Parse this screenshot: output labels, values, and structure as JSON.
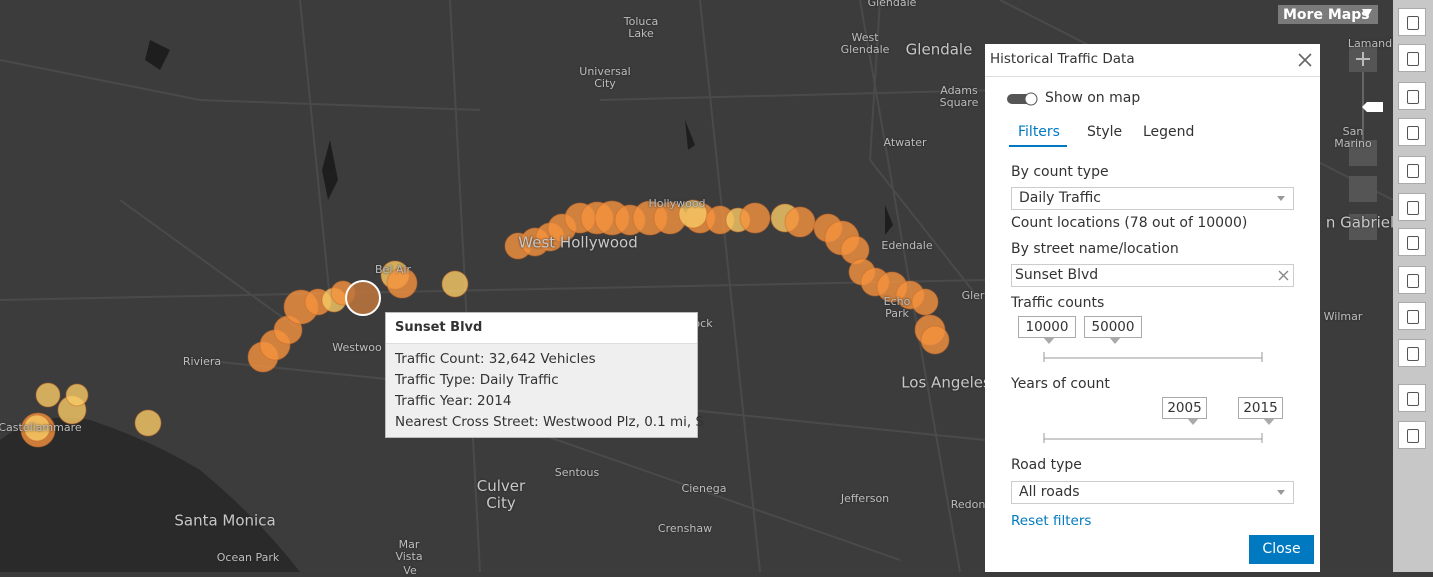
{
  "map": {
    "more_maps": "More Maps",
    "labels": [
      "Glendale",
      "Toluca Lake",
      "Universal City",
      "West Glendale",
      "Glendale",
      "Adams Square",
      "Atwater",
      "Hollywood",
      "West Hollywood",
      "Bel Air",
      "Edendale",
      "Echo Park",
      "Gler",
      "Westwoo",
      "ock",
      "Riviera",
      "Castellammare",
      "Los Angeles",
      "Culver City",
      "Sentous",
      "Cienega",
      "Crenshaw",
      "Jefferson",
      "Redon",
      "Santa Monica",
      "Ocean Park",
      "Mar Vista",
      "Ve",
      "Wilmar",
      "San Marino",
      "n Gabriel",
      "Lamand"
    ]
  },
  "popup": {
    "title": "Sunset Blvd",
    "fields": [
      {
        "label": "Traffic Count:",
        "value": "32,642 Vehicles"
      },
      {
        "label": "Traffic Type:",
        "value": "Daily Traffic"
      },
      {
        "label": "Traffic Year:",
        "value": "2014"
      },
      {
        "label": "Nearest Cross Street:",
        "value": "Westwood Plz, 0.1 mi, S"
      }
    ]
  },
  "panel": {
    "title": "Historical Traffic Data",
    "toggle": "Show on map",
    "tabs": [
      "Filters",
      "Style",
      "Legend"
    ],
    "count_type": {
      "label": "By count type",
      "selected": "Daily Traffic"
    },
    "count_locations": "Count locations (78 out of 10000)",
    "street": {
      "label": "By street name/location",
      "value": "Sunset Blvd"
    },
    "traffic_counts": {
      "label": "Traffic counts",
      "min": 10000,
      "max": 50000
    },
    "years": {
      "label": "Years of count",
      "min": 2005,
      "max": 2015
    },
    "road_type": {
      "label": "Road type",
      "selected": "All roads"
    },
    "reset": "Reset filters",
    "close": "Close"
  }
}
